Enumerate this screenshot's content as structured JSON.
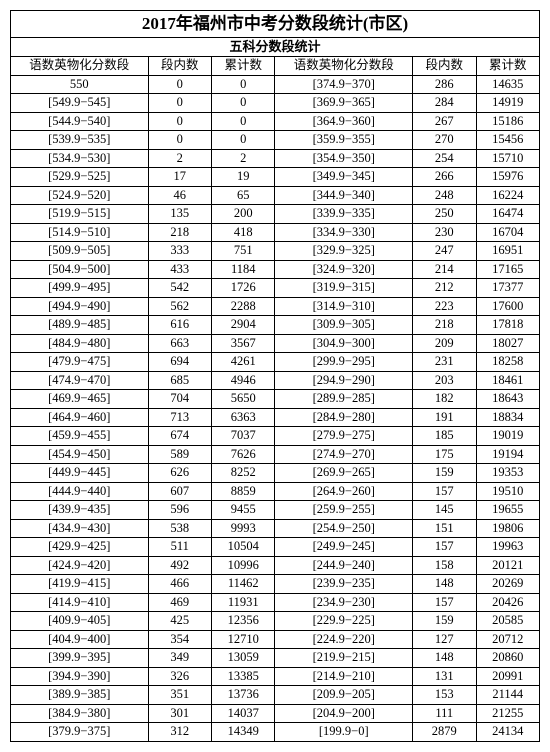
{
  "title": "2017年福州市中考分数段统计(市区)",
  "subtitle": "五科分数段统计",
  "headers": {
    "range": "语数英物化分数段",
    "count": "段内数",
    "cum": "累计数"
  },
  "rows_left": [
    [
      "550",
      "0",
      "0"
    ],
    [
      "[549.9−545]",
      "0",
      "0"
    ],
    [
      "[544.9−540]",
      "0",
      "0"
    ],
    [
      "[539.9−535]",
      "0",
      "0"
    ],
    [
      "[534.9−530]",
      "2",
      "2"
    ],
    [
      "[529.9−525]",
      "17",
      "19"
    ],
    [
      "[524.9−520]",
      "46",
      "65"
    ],
    [
      "[519.9−515]",
      "135",
      "200"
    ],
    [
      "[514.9−510]",
      "218",
      "418"
    ],
    [
      "[509.9−505]",
      "333",
      "751"
    ],
    [
      "[504.9−500]",
      "433",
      "1184"
    ],
    [
      "[499.9−495]",
      "542",
      "1726"
    ],
    [
      "[494.9−490]",
      "562",
      "2288"
    ],
    [
      "[489.9−485]",
      "616",
      "2904"
    ],
    [
      "[484.9−480]",
      "663",
      "3567"
    ],
    [
      "[479.9−475]",
      "694",
      "4261"
    ],
    [
      "[474.9−470]",
      "685",
      "4946"
    ],
    [
      "[469.9−465]",
      "704",
      "5650"
    ],
    [
      "[464.9−460]",
      "713",
      "6363"
    ],
    [
      "[459.9−455]",
      "674",
      "7037"
    ],
    [
      "[454.9−450]",
      "589",
      "7626"
    ],
    [
      "[449.9−445]",
      "626",
      "8252"
    ],
    [
      "[444.9−440]",
      "607",
      "8859"
    ],
    [
      "[439.9−435]",
      "596",
      "9455"
    ],
    [
      "[434.9−430]",
      "538",
      "9993"
    ],
    [
      "[429.9−425]",
      "511",
      "10504"
    ],
    [
      "[424.9−420]",
      "492",
      "10996"
    ],
    [
      "[419.9−415]",
      "466",
      "11462"
    ],
    [
      "[414.9−410]",
      "469",
      "11931"
    ],
    [
      "[409.9−405]",
      "425",
      "12356"
    ],
    [
      "[404.9−400]",
      "354",
      "12710"
    ],
    [
      "[399.9−395]",
      "349",
      "13059"
    ],
    [
      "[394.9−390]",
      "326",
      "13385"
    ],
    [
      "[389.9−385]",
      "351",
      "13736"
    ],
    [
      "[384.9−380]",
      "301",
      "14037"
    ],
    [
      "[379.9−375]",
      "312",
      "14349"
    ]
  ],
  "rows_right": [
    [
      "[374.9−370]",
      "286",
      "14635"
    ],
    [
      "[369.9−365]",
      "284",
      "14919"
    ],
    [
      "[364.9−360]",
      "267",
      "15186"
    ],
    [
      "[359.9−355]",
      "270",
      "15456"
    ],
    [
      "[354.9−350]",
      "254",
      "15710"
    ],
    [
      "[349.9−345]",
      "266",
      "15976"
    ],
    [
      "[344.9−340]",
      "248",
      "16224"
    ],
    [
      "[339.9−335]",
      "250",
      "16474"
    ],
    [
      "[334.9−330]",
      "230",
      "16704"
    ],
    [
      "[329.9−325]",
      "247",
      "16951"
    ],
    [
      "[324.9−320]",
      "214",
      "17165"
    ],
    [
      "[319.9−315]",
      "212",
      "17377"
    ],
    [
      "[314.9−310]",
      "223",
      "17600"
    ],
    [
      "[309.9−305]",
      "218",
      "17818"
    ],
    [
      "[304.9−300]",
      "209",
      "18027"
    ],
    [
      "[299.9−295]",
      "231",
      "18258"
    ],
    [
      "[294.9−290]",
      "203",
      "18461"
    ],
    [
      "[289.9−285]",
      "182",
      "18643"
    ],
    [
      "[284.9−280]",
      "191",
      "18834"
    ],
    [
      "[279.9−275]",
      "185",
      "19019"
    ],
    [
      "[274.9−270]",
      "175",
      "19194"
    ],
    [
      "[269.9−265]",
      "159",
      "19353"
    ],
    [
      "[264.9−260]",
      "157",
      "19510"
    ],
    [
      "[259.9−255]",
      "145",
      "19655"
    ],
    [
      "[254.9−250]",
      "151",
      "19806"
    ],
    [
      "[249.9−245]",
      "157",
      "19963"
    ],
    [
      "[244.9−240]",
      "158",
      "20121"
    ],
    [
      "[239.9−235]",
      "148",
      "20269"
    ],
    [
      "[234.9−230]",
      "157",
      "20426"
    ],
    [
      "[229.9−225]",
      "159",
      "20585"
    ],
    [
      "[224.9−220]",
      "127",
      "20712"
    ],
    [
      "[219.9−215]",
      "148",
      "20860"
    ],
    [
      "[214.9−210]",
      "131",
      "20991"
    ],
    [
      "[209.9−205]",
      "153",
      "21144"
    ],
    [
      "[204.9−200]",
      "111",
      "21255"
    ],
    [
      "[199.9−0]",
      "2879",
      "24134"
    ]
  ]
}
